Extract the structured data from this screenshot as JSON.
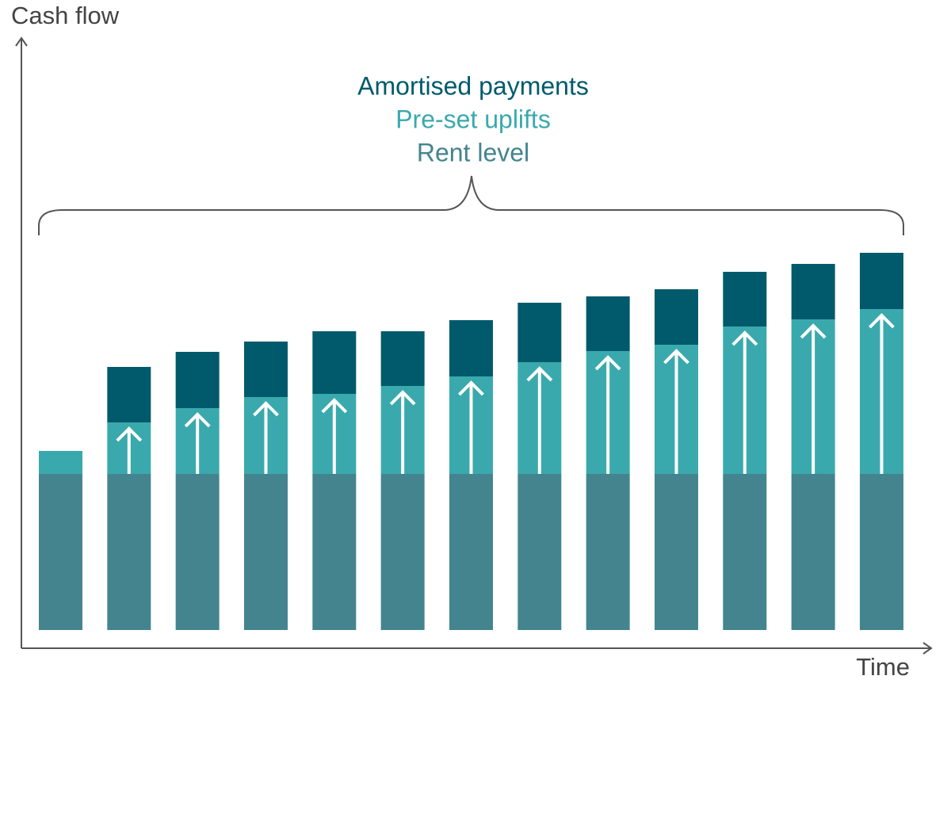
{
  "chart_data": {
    "type": "bar",
    "stacked": true,
    "y_label": "Cash flow",
    "x_label": "Time",
    "categories": [
      null,
      null,
      null,
      null,
      null,
      null,
      null,
      null,
      null,
      null,
      null,
      null,
      null
    ],
    "series": [
      {
        "name": "Rent level",
        "color": "#43848f",
        "values": [
          19.7,
          19.7,
          19.7,
          19.7,
          19.7,
          19.7,
          19.7,
          19.7,
          19.7,
          19.7,
          19.7,
          19.7,
          19.7
        ]
      },
      {
        "name": "Pre-set uplifts",
        "color": "#3aa9ad",
        "values": [
          2.9,
          6.5,
          8.3,
          9.7,
          10.1,
          11.1,
          12.3,
          14.1,
          15.5,
          16.3,
          18.6,
          19.5,
          20.8
        ]
      },
      {
        "name": "Amortised payments",
        "color": "#005a6b",
        "values": [
          0,
          7,
          7.1,
          7,
          7.9,
          6.9,
          7.1,
          7.5,
          6.9,
          7,
          6.9,
          7,
          7.1
        ]
      }
    ],
    "ylim": [
      0,
      50
    ]
  }
}
